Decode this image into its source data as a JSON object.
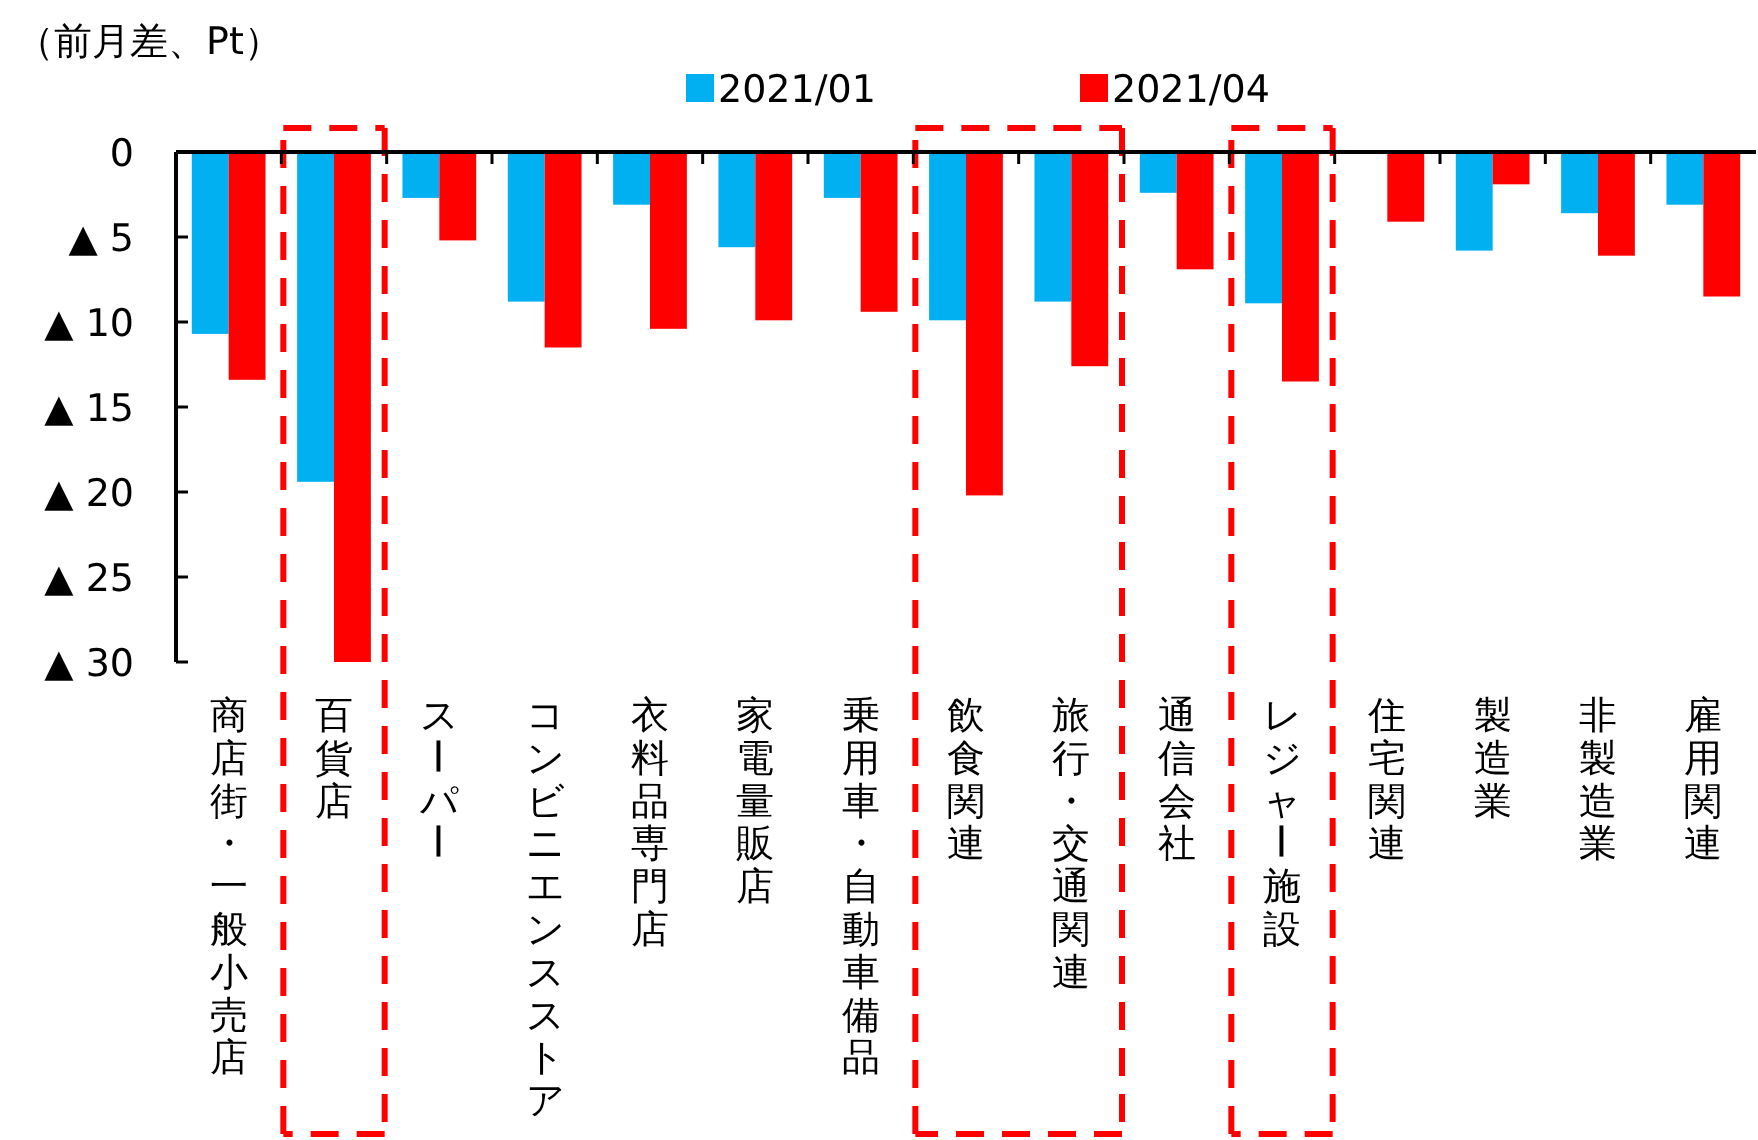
{
  "chart_data": {
    "type": "bar",
    "title": "（前月差、Pt）",
    "categories": [
      "商店街・一般小売店",
      "百貨店",
      "スーパー",
      "コンビニエンスストア",
      "衣料品専門店",
      "家電量販店",
      "乗用車・自動車備品",
      "飲食関連",
      "旅行・交通関連",
      "通信会社",
      "レジャー施設",
      "住宅関連",
      "製造業",
      "非製造業",
      "雇用関連"
    ],
    "series": [
      {
        "name": "2021/01",
        "color": "#00b0f0",
        "values": [
          -10.7,
          -19.4,
          -2.7,
          -8.8,
          -3.1,
          -5.6,
          -2.7,
          -9.9,
          -8.8,
          -2.4,
          -8.9,
          0,
          -5.8,
          -3.6,
          -3.1
        ]
      },
      {
        "name": "2021/04",
        "color": "#ff0000",
        "values": [
          -13.4,
          -30,
          -5.2,
          -11.5,
          -10.4,
          -9.9,
          -9.4,
          -20.2,
          -12.6,
          -6.9,
          -13.5,
          -4.1,
          -1.9,
          -6.1,
          -8.5
        ]
      }
    ],
    "ylim": [
      -30,
      0
    ],
    "yticks": [
      {
        "value": 0,
        "label": "0"
      },
      {
        "value": -5,
        "label": "▲ 5"
      },
      {
        "value": -10,
        "label": "▲ 10"
      },
      {
        "value": -15,
        "label": "▲ 15"
      },
      {
        "value": -20,
        "label": "▲ 20"
      },
      {
        "value": -25,
        "label": "▲ 25"
      },
      {
        "value": -30,
        "label": "▲ 30"
      }
    ],
    "legend": "top",
    "grid": false
  }
}
